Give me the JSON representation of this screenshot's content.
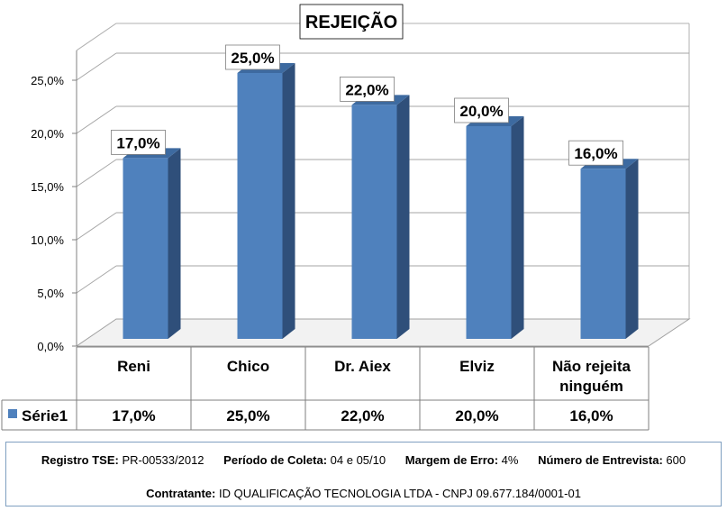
{
  "chart_data": {
    "type": "bar",
    "title": "REJEIÇÃO",
    "categories": [
      "Reni",
      "Chico",
      "Dr. Aiex",
      "Elviz",
      "Não rejeita ninguém"
    ],
    "category_lines": [
      [
        "Reni"
      ],
      [
        "Chico"
      ],
      [
        "Dr. Aiex"
      ],
      [
        "Elviz"
      ],
      [
        "Não rejeita",
        "ninguém"
      ]
    ],
    "series": [
      {
        "name": "Série1",
        "values": [
          17.0,
          25.0,
          22.0,
          20.0,
          16.0
        ],
        "labels": [
          "17,0%",
          "25,0%",
          "22,0%",
          "20,0%",
          "16,0%"
        ]
      }
    ],
    "yticks": [
      "0,0%",
      "5,0%",
      "10,0%",
      "15,0%",
      "20,0%",
      "25,0%"
    ],
    "ylim": [
      0,
      25
    ],
    "grid": true,
    "legend": "data-table-left",
    "bar_color": "#4f81bd",
    "bar_side_color": "#2f4f7a",
    "bar_top_color": "#3d6aa0"
  },
  "footer": {
    "registro_label": "Registro TSE:",
    "registro_value": "PR-00533/2012",
    "periodo_label": "Período de Coleta:",
    "periodo_value": "04 e 05/10",
    "margem_label": "Margem de Erro:",
    "margem_value": "4%",
    "entrevistas_label": "Número de Entrevista:",
    "entrevistas_value": "600",
    "contratante_label": "Contratante:",
    "contratante_value": "ID QUALIFICAÇÃO TECNOLOGIA LTDA - CNPJ 09.677.184/0001-01"
  }
}
